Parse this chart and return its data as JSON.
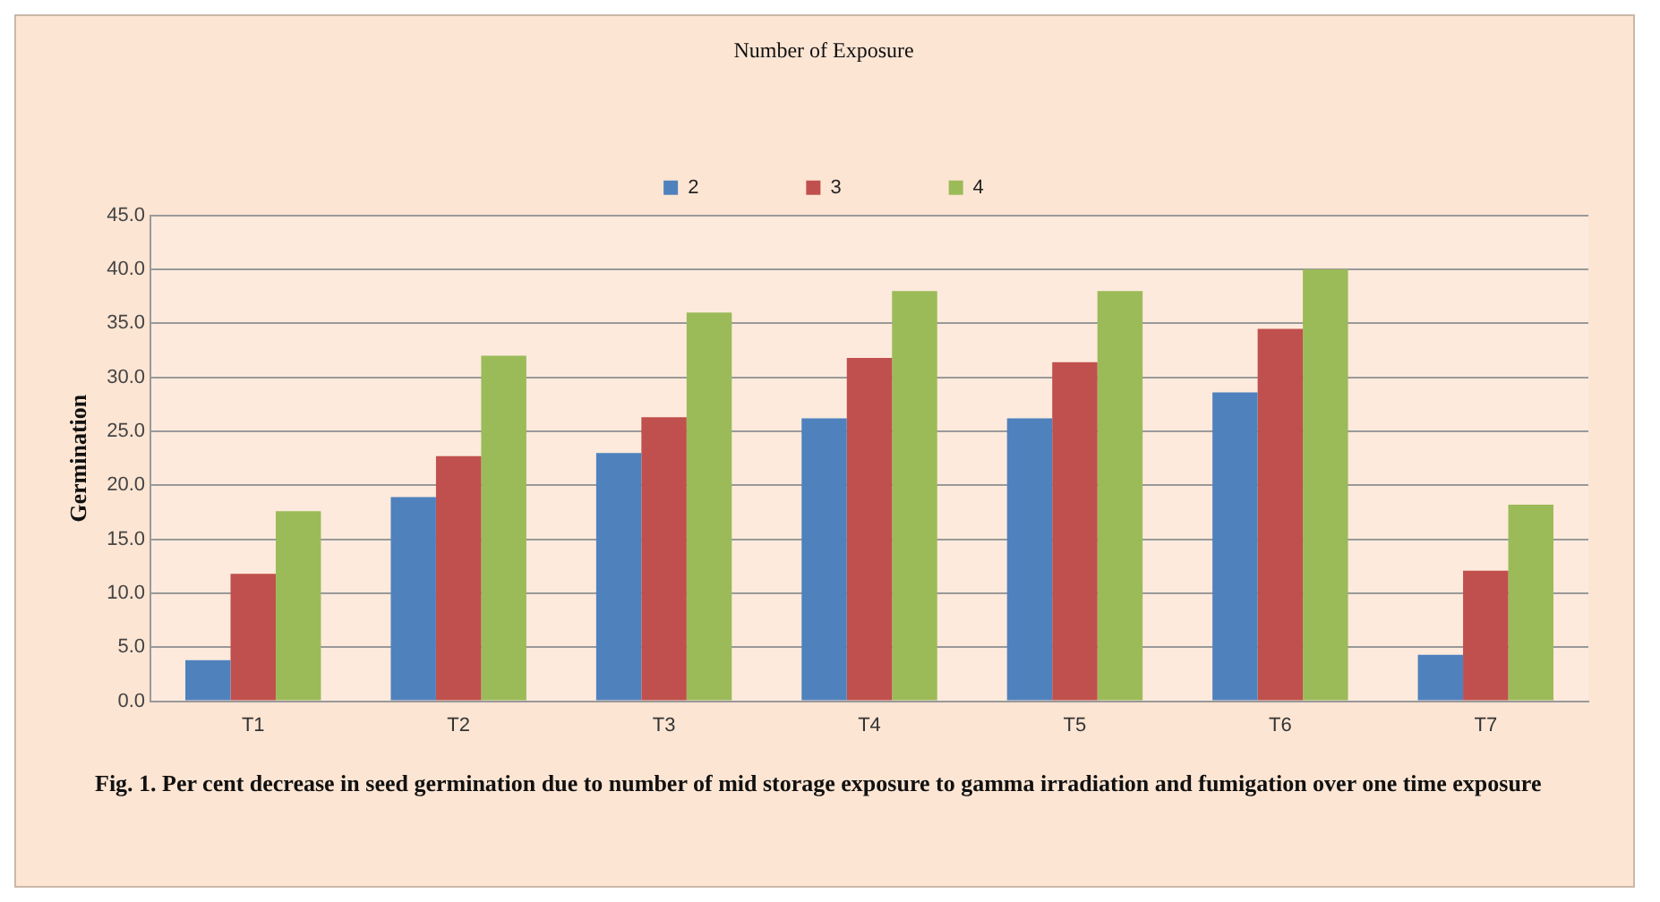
{
  "chart_data": {
    "type": "bar",
    "ylabel": "Germination",
    "legend_title": "Number of Exposure",
    "legend": "top",
    "grid": "y",
    "categories": [
      "T1",
      "T2",
      "T3",
      "T4",
      "T5",
      "T6",
      "T7"
    ],
    "series": [
      {
        "name": "2",
        "color": "#4f81bd",
        "values": [
          3.8,
          18.9,
          23.0,
          26.2,
          26.2,
          28.6,
          4.3
        ]
      },
      {
        "name": "3",
        "color": "#c0504d",
        "values": [
          11.8,
          22.7,
          26.3,
          31.8,
          31.4,
          34.5,
          12.1
        ]
      },
      {
        "name": "4",
        "color": "#9bbb59",
        "values": [
          17.6,
          32.0,
          36.0,
          38.0,
          38.0,
          40.0,
          18.2
        ]
      }
    ],
    "ylim": [
      0,
      45
    ],
    "yticks": [
      {
        "value": 0,
        "label": "0.0"
      },
      {
        "value": 5,
        "label": "5.0"
      },
      {
        "value": 10,
        "label": "10.0"
      },
      {
        "value": 15,
        "label": "15.0"
      },
      {
        "value": 20,
        "label": "20.0"
      },
      {
        "value": 25,
        "label": "25.0"
      },
      {
        "value": 30,
        "label": "30.0"
      },
      {
        "value": 35,
        "label": "35.0"
      },
      {
        "value": 40,
        "label": "40.0"
      },
      {
        "value": 45,
        "label": "45.0"
      }
    ],
    "annotations": [
      "Fig. 1. Per cent decrease in seed germination  due to number of mid storage exposure to gamma irradiation and fumigation over one time exposure"
    ]
  }
}
